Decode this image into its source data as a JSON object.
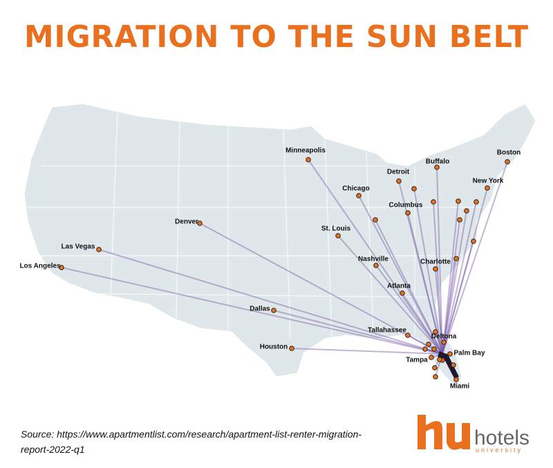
{
  "title": "MIGRATION TO THE SUN BELT",
  "cities": [
    {
      "label": "Minneapolis"
    },
    {
      "label": "Detroit"
    },
    {
      "label": "Buffalo"
    },
    {
      "label": "Boston"
    },
    {
      "label": "Chicago"
    },
    {
      "label": "New York"
    },
    {
      "label": "Columbus"
    },
    {
      "label": "Denver"
    },
    {
      "label": "St. Louis"
    },
    {
      "label": "Las Vegas"
    },
    {
      "label": "Nashville"
    },
    {
      "label": "Charlotte"
    },
    {
      "label": "Los Angeles"
    },
    {
      "label": "Atlanta"
    },
    {
      "label": "Dallas"
    },
    {
      "label": "Tallahassee"
    },
    {
      "label": "Deltona"
    },
    {
      "label": "Houston"
    },
    {
      "label": "Palm Bay"
    },
    {
      "label": "Tampa"
    },
    {
      "label": "Miami"
    }
  ],
  "source": "Source: https://www.apartmentlist.com/research/apartment-list-renter-migration-report-2022-q1",
  "logo": {
    "name": "hotels",
    "tagline": "university"
  }
}
